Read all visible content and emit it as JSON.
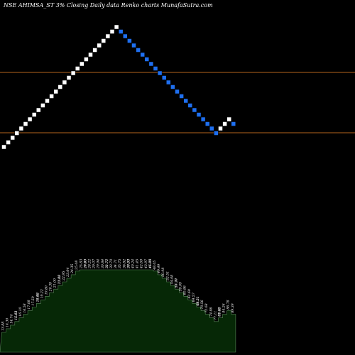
{
  "chart_data": {
    "type": "renko",
    "title": "NSE AHIMSA_ST 3% Closing Daily data  Renko  charts MunafaSutra.com",
    "bricks": [
      "up",
      "up",
      "up",
      "up",
      "up",
      "up",
      "up",
      "up",
      "up",
      "up",
      "up",
      "up",
      "up",
      "up",
      "up",
      "up",
      "up",
      "up",
      "up",
      "up",
      "up",
      "up",
      "up",
      "up",
      "up",
      "up",
      "up",
      "down",
      "down",
      "down",
      "down",
      "down",
      "down",
      "down",
      "down",
      "down",
      "down",
      "down",
      "down",
      "down",
      "down",
      "down",
      "down",
      "down",
      "down",
      "down",
      "down",
      "down",
      "down",
      "down",
      "up",
      "up",
      "up",
      "down"
    ],
    "colors": {
      "up": "#ffffff",
      "down": "#1e6ff0",
      "reference_line": "#b5651d",
      "volume_fill": "#062806",
      "volume_stroke": "#5a8a5a",
      "background": "#000000"
    },
    "reference_lines": [
      "upper",
      "lower"
    ],
    "volume_labels": [
      "13.88",
      "14.30",
      "14.74",
      "15.18",
      "15.63",
      "16.10",
      "16.58",
      "17.08",
      "17.59",
      "18.12",
      "18.66",
      "19.22",
      "19.80",
      "20.39",
      "21.00",
      "21.63",
      "22.28",
      "22.95",
      "23.64",
      "24.35",
      "25.08",
      "25.83",
      "26.60",
      "27.40",
      "28.22",
      "29.07",
      "29.94",
      "30.84",
      "31.77",
      "32.72",
      "33.70",
      "34.71",
      "35.75",
      "36.82",
      "37.93",
      "39.07",
      "40.24",
      "41.45",
      "42.69",
      "43.97",
      "45.29",
      "46.65",
      "48.05",
      "49.49",
      "50.98",
      "52.51",
      "54.08",
      "55.70",
      "57.37",
      "59.09",
      "60.86",
      "62.69",
      "64.57",
      "66.51",
      "68.51",
      "70.56",
      "72.68",
      "74.86",
      "77.11",
      "79.42",
      "81.80",
      "84.26",
      "86.78",
      "89.39"
    ]
  }
}
